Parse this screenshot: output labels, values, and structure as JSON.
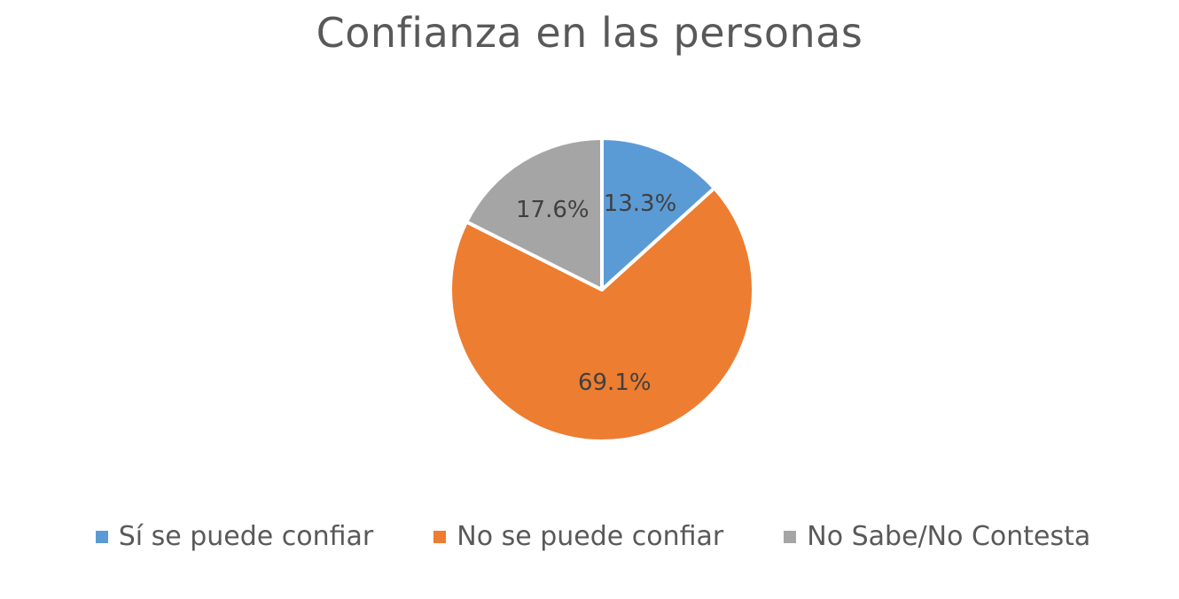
{
  "chart_data": {
    "type": "pie",
    "title": "Confianza en las personas",
    "categories": [
      "Sí se puede confiar",
      "No se puede confiar",
      "No Sabe/No Contesta"
    ],
    "values": [
      13.3,
      69.1,
      17.6
    ],
    "value_labels": [
      "13.3%",
      "69.1%",
      "17.6%"
    ],
    "colors": [
      "#5B9BD5",
      "#ED7D31",
      "#A5A5A5"
    ],
    "start_angle_deg": 0,
    "direction": "clockwise",
    "legend_position": "bottom"
  }
}
